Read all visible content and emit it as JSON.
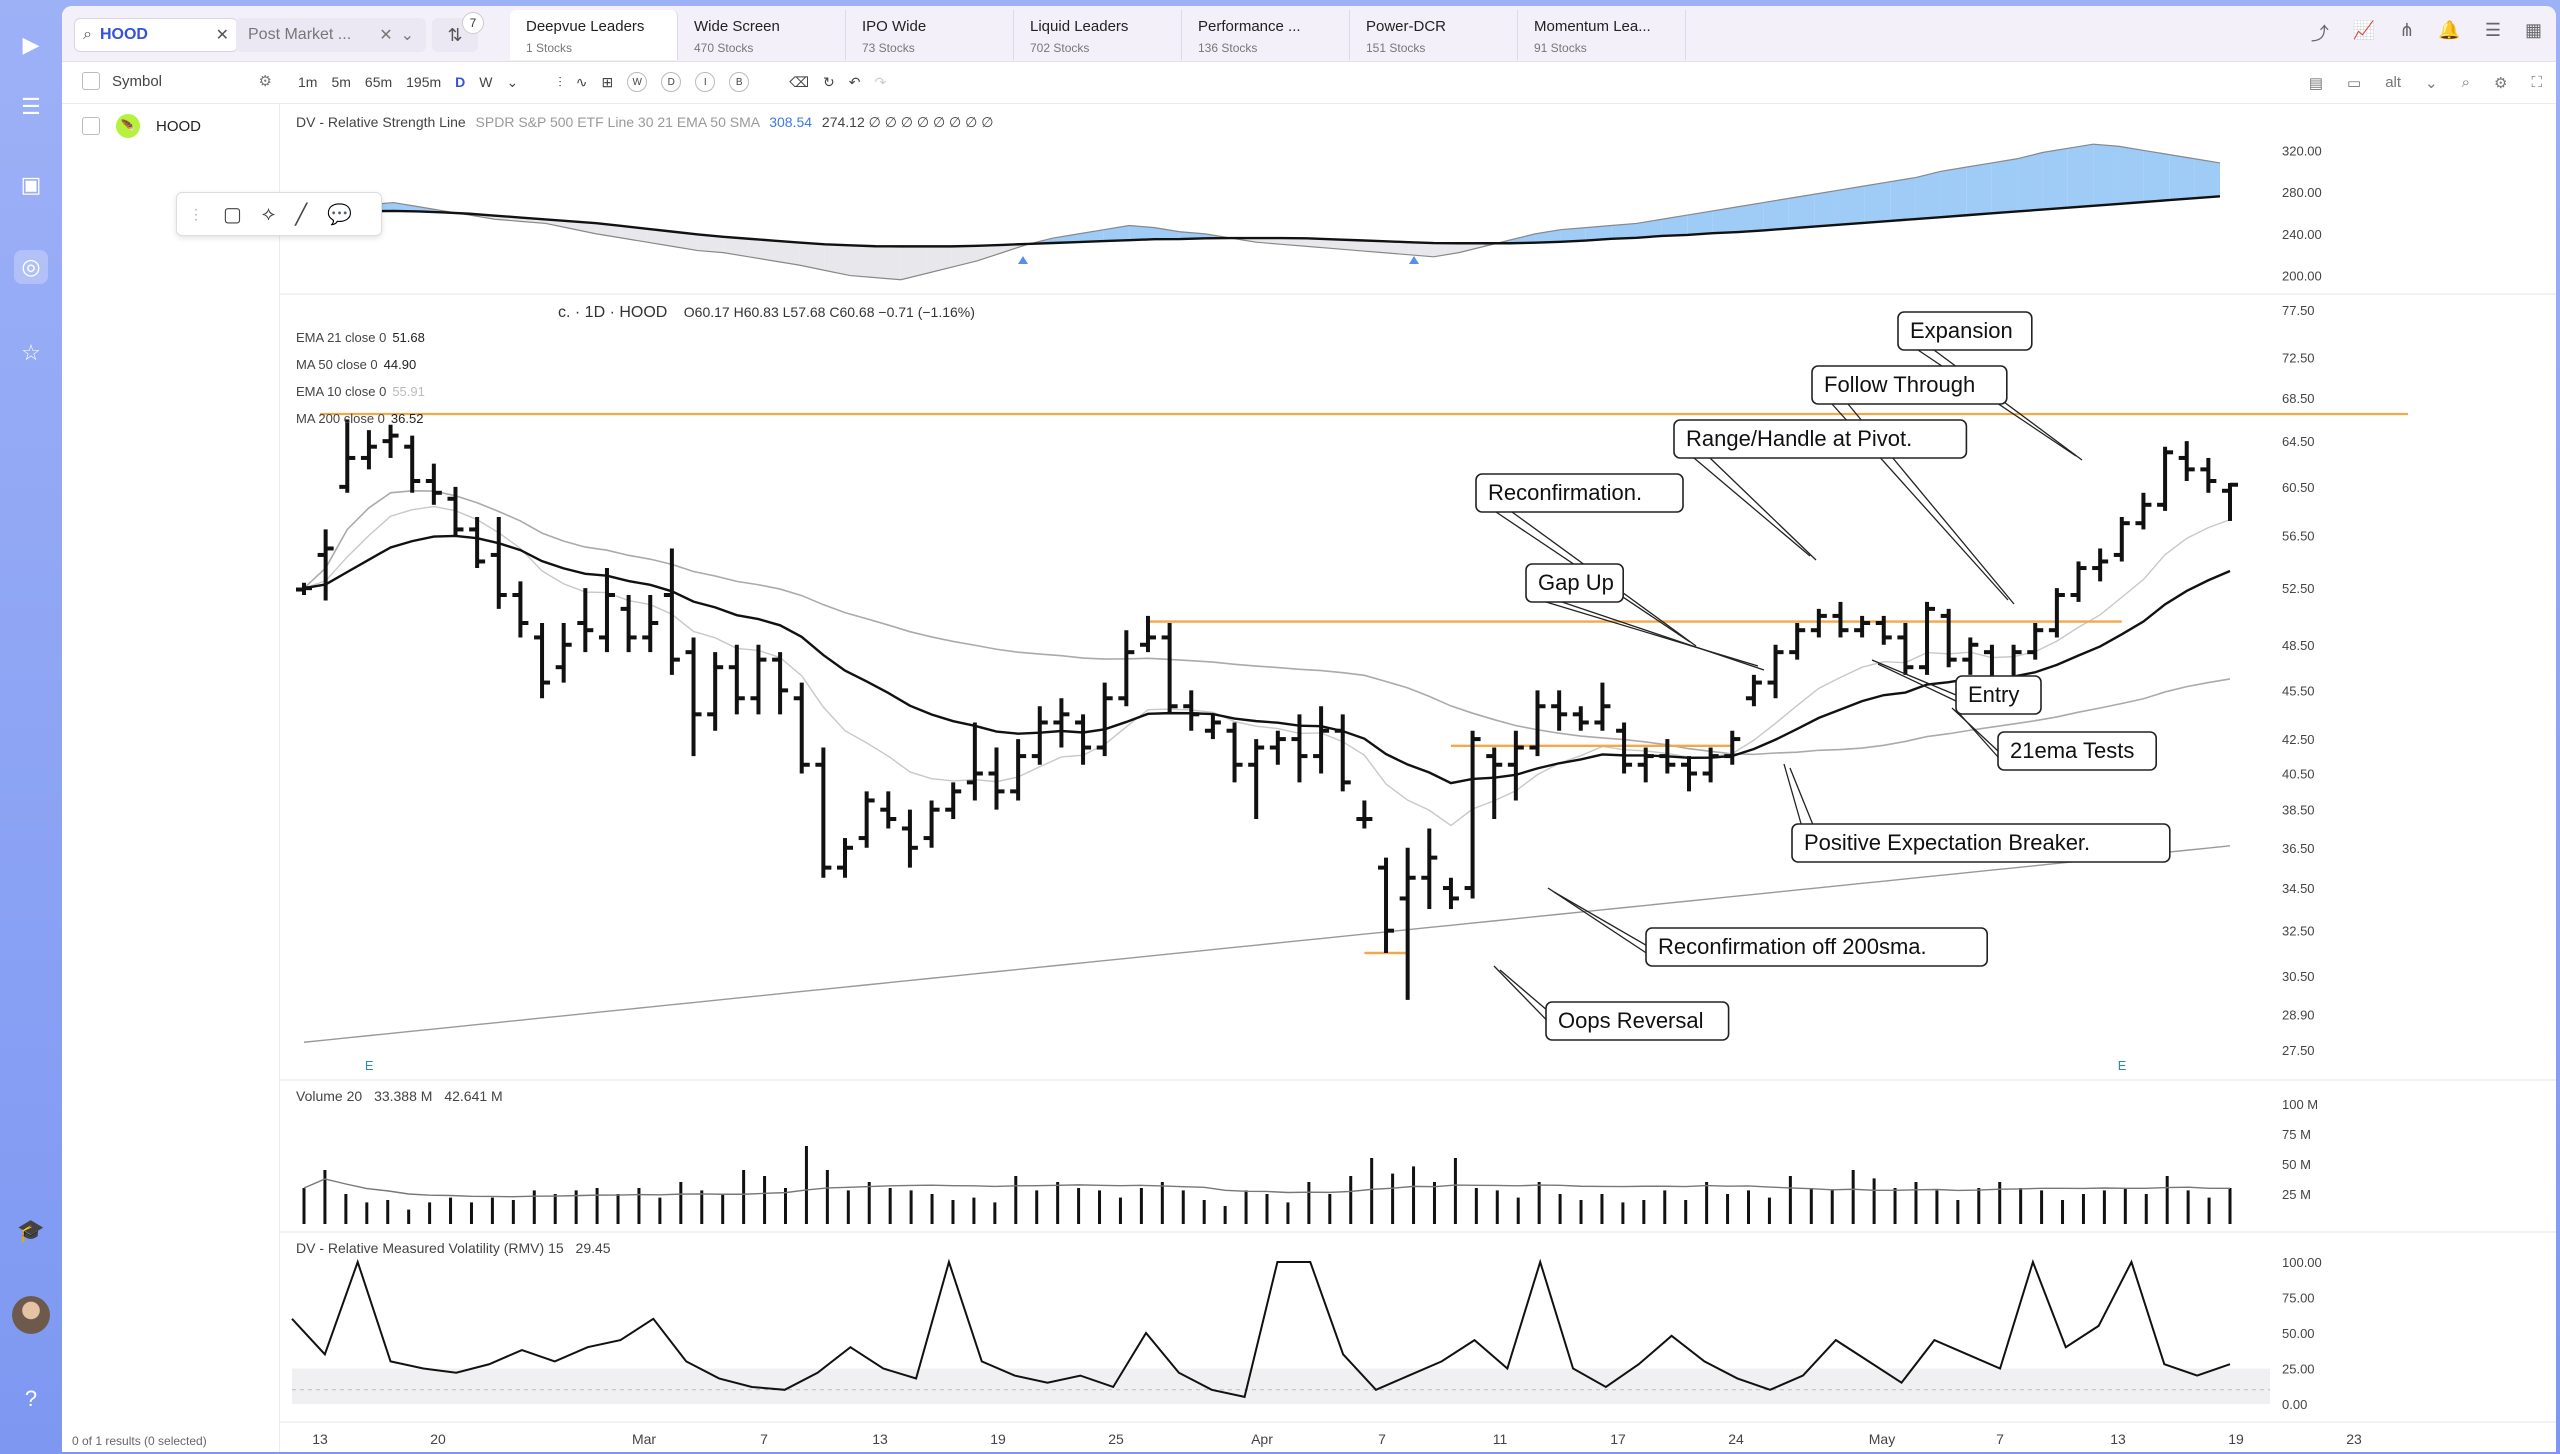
{
  "search": {
    "value": "HOOD"
  },
  "market_dropdown": {
    "label": "Post Market ..."
  },
  "filter": {
    "badge": "7"
  },
  "tabs": [
    {
      "name": "Deepvue Leaders",
      "count": "1 Stocks",
      "active": true
    },
    {
      "name": "Wide Screen",
      "count": "470 Stocks"
    },
    {
      "name": "IPO Wide",
      "count": "73 Stocks"
    },
    {
      "name": "Liquid Leaders",
      "count": "702 Stocks"
    },
    {
      "name": "Performance ...",
      "count": "136 Stocks"
    },
    {
      "name": "Power-DCR",
      "count": "151 Stocks"
    },
    {
      "name": "Momentum Lea...",
      "count": "91 Stocks"
    }
  ],
  "symbol_list": {
    "header": "Symbol",
    "items": [
      {
        "symbol": "HOOD"
      }
    ],
    "results": "0 of 1 results (0 selected)"
  },
  "timeframes": [
    "1m",
    "5m",
    "65m",
    "195m",
    "D",
    "W"
  ],
  "timeframe_active": "D",
  "toolbar_circles": [
    "W",
    "D",
    "I",
    "B"
  ],
  "alt_label": "alt",
  "rs_panel": {
    "title": "DV - Relative Strength Line",
    "params": "SPDR S&P 500 ETF Line 30 21 EMA 50 SMA",
    "v1": "308.54",
    "v2": "274.12 ∅ ∅ ∅ ∅ ∅ ∅ ∅ ∅",
    "ticks": [
      "320.00",
      "280.00",
      "240.00",
      "200.00"
    ]
  },
  "price_panel": {
    "header": "c. · 1D · HOOD",
    "ohlc": "O60.17  H60.83  L57.68  C60.68  −0.71 (−1.16%)",
    "indicators": [
      {
        "name": "EMA 21 close 0",
        "value": "51.68"
      },
      {
        "name": "MA 50 close 0",
        "value": "44.90"
      },
      {
        "name": "EMA 10 close 0",
        "value": "55.91"
      },
      {
        "name": "MA 200 close 0",
        "value": "36.52"
      }
    ],
    "ticks": [
      "77.50",
      "72.50",
      "68.50",
      "64.50",
      "60.50",
      "56.50",
      "52.50",
      "48.50",
      "45.50",
      "42.50",
      "40.50",
      "38.50",
      "36.50",
      "34.50",
      "32.50",
      "30.50",
      "28.90",
      "27.50"
    ],
    "earnings_marker": "E"
  },
  "annotations": [
    "Expansion",
    "Follow Through",
    "Range/Handle at Pivot.",
    "Reconfirmation.",
    "Gap Up",
    "Entry",
    "21ema Tests",
    "Positive Expectation Breaker.",
    "Reconfirmation off 200sma.",
    "Oops Reversal"
  ],
  "volume_panel": {
    "title": "Volume 20",
    "v1": "33.388 M",
    "v2": "42.641 M",
    "ticks": [
      "100 M",
      "75 M",
      "50 M",
      "25 M"
    ]
  },
  "rmv_panel": {
    "title": "DV - Relative Measured Volatility (RMV) 15",
    "value": "29.45",
    "ticks": [
      "100.00",
      "75.00",
      "50.00",
      "25.00",
      "0.00"
    ]
  },
  "x_axis": [
    "13",
    "20",
    "Mar",
    "7",
    "13",
    "19",
    "25",
    "Apr",
    "7",
    "11",
    "17",
    "24",
    "May",
    "7",
    "13",
    "19",
    "23"
  ],
  "chart_data": {
    "type": "candlestick",
    "interval": "1D",
    "symbol": "HOOD",
    "y_scale": "log",
    "price_range": [
      27.5,
      77.5
    ],
    "bars": [
      {
        "o": 52.4,
        "h": 52.9,
        "l": 52.0,
        "c": 52.5
      },
      {
        "o": 55.0,
        "h": 57.0,
        "l": 51.6,
        "c": 55.5
      },
      {
        "o": 60.5,
        "h": 66.5,
        "l": 60.0,
        "c": 63.0
      },
      {
        "o": 63.0,
        "h": 65.5,
        "l": 62.0,
        "c": 64.0
      },
      {
        "o": 64.5,
        "h": 66.0,
        "l": 63.0,
        "c": 65.0
      },
      {
        "o": 64.0,
        "h": 65.0,
        "l": 60.0,
        "c": 61.0
      },
      {
        "o": 61.0,
        "h": 62.5,
        "l": 59.0,
        "c": 60.0
      },
      {
        "o": 59.5,
        "h": 60.5,
        "l": 56.5,
        "c": 57.0
      },
      {
        "o": 57.0,
        "h": 58.0,
        "l": 54.0,
        "c": 54.5
      },
      {
        "o": 55.0,
        "h": 58.0,
        "l": 51.0,
        "c": 52.0
      },
      {
        "o": 52.0,
        "h": 53.0,
        "l": 49.0,
        "c": 50.0
      },
      {
        "o": 49.0,
        "h": 50.0,
        "l": 45.0,
        "c": 46.0
      },
      {
        "o": 47.0,
        "h": 50.0,
        "l": 46.0,
        "c": 48.5
      },
      {
        "o": 50.0,
        "h": 52.5,
        "l": 48.0,
        "c": 49.5
      },
      {
        "o": 49.0,
        "h": 54.0,
        "l": 48.0,
        "c": 52.0
      },
      {
        "o": 51.0,
        "h": 52.0,
        "l": 48.0,
        "c": 49.0
      },
      {
        "o": 49.0,
        "h": 52.0,
        "l": 48.0,
        "c": 50.0
      },
      {
        "o": 52.0,
        "h": 55.5,
        "l": 46.5,
        "c": 47.5
      },
      {
        "o": 48.0,
        "h": 49.0,
        "l": 41.5,
        "c": 44.0
      },
      {
        "o": 44.0,
        "h": 48.0,
        "l": 43.0,
        "c": 47.0
      },
      {
        "o": 47.0,
        "h": 48.5,
        "l": 44.0,
        "c": 45.0
      },
      {
        "o": 45.0,
        "h": 48.5,
        "l": 44.0,
        "c": 47.5
      },
      {
        "o": 47.5,
        "h": 48.0,
        "l": 44.0,
        "c": 45.5
      },
      {
        "o": 45.0,
        "h": 46.0,
        "l": 40.5,
        "c": 41.0
      },
      {
        "o": 41.0,
        "h": 42.0,
        "l": 35.0,
        "c": 35.5
      },
      {
        "o": 35.5,
        "h": 37.0,
        "l": 35.0,
        "c": 36.5
      },
      {
        "o": 37.0,
        "h": 39.5,
        "l": 36.5,
        "c": 39.0
      },
      {
        "o": 38.5,
        "h": 39.5,
        "l": 37.5,
        "c": 38.0
      },
      {
        "o": 37.5,
        "h": 38.5,
        "l": 35.5,
        "c": 36.5
      },
      {
        "o": 37.0,
        "h": 39.0,
        "l": 36.5,
        "c": 38.5
      },
      {
        "o": 38.5,
        "h": 40.0,
        "l": 38.0,
        "c": 39.5
      },
      {
        "o": 40.0,
        "h": 43.5,
        "l": 39.0,
        "c": 40.5
      },
      {
        "o": 40.5,
        "h": 42.0,
        "l": 38.5,
        "c": 39.5
      },
      {
        "o": 39.5,
        "h": 42.5,
        "l": 39.0,
        "c": 41.5
      },
      {
        "o": 41.5,
        "h": 44.5,
        "l": 41.0,
        "c": 43.5
      },
      {
        "o": 43.5,
        "h": 45.0,
        "l": 42.0,
        "c": 44.0
      },
      {
        "o": 43.5,
        "h": 44.0,
        "l": 41.0,
        "c": 42.0
      },
      {
        "o": 42.0,
        "h": 46.0,
        "l": 41.5,
        "c": 45.0
      },
      {
        "o": 45.0,
        "h": 49.5,
        "l": 44.5,
        "c": 48.0
      },
      {
        "o": 48.5,
        "h": 50.5,
        "l": 48.0,
        "c": 49.0
      },
      {
        "o": 49.0,
        "h": 50.0,
        "l": 44.0,
        "c": 44.5
      },
      {
        "o": 44.5,
        "h": 45.5,
        "l": 43.0,
        "c": 44.0
      },
      {
        "o": 43.0,
        "h": 44.0,
        "l": 42.5,
        "c": 43.5
      },
      {
        "o": 43.0,
        "h": 43.5,
        "l": 40.0,
        "c": 41.0
      },
      {
        "o": 41.0,
        "h": 42.5,
        "l": 38.0,
        "c": 42.0
      },
      {
        "o": 42.0,
        "h": 43.0,
        "l": 41.0,
        "c": 42.5
      },
      {
        "o": 42.5,
        "h": 44.0,
        "l": 40.0,
        "c": 41.5
      },
      {
        "o": 41.5,
        "h": 44.5,
        "l": 40.5,
        "c": 43.0
      },
      {
        "o": 43.0,
        "h": 44.0,
        "l": 39.5,
        "c": 40.0
      },
      {
        "o": 38.0,
        "h": 39.0,
        "l": 37.5,
        "c": 38.0
      },
      {
        "o": 35.5,
        "h": 36.0,
        "l": 31.5,
        "c": 32.5
      },
      {
        "o": 34.0,
        "h": 36.5,
        "l": 29.5,
        "c": 35.0
      },
      {
        "o": 35.0,
        "h": 37.5,
        "l": 33.5,
        "c": 36.0
      },
      {
        "o": 34.5,
        "h": 35.0,
        "l": 33.5,
        "c": 34.0
      },
      {
        "o": 34.5,
        "h": 43.0,
        "l": 34.0,
        "c": 42.5
      },
      {
        "o": 41.5,
        "h": 42.0,
        "l": 38.0,
        "c": 41.0
      },
      {
        "o": 41.0,
        "h": 43.0,
        "l": 39.0,
        "c": 42.0
      },
      {
        "o": 42.0,
        "h": 45.5,
        "l": 41.5,
        "c": 44.5
      },
      {
        "o": 44.5,
        "h": 45.5,
        "l": 43.0,
        "c": 44.0
      },
      {
        "o": 44.0,
        "h": 44.5,
        "l": 43.0,
        "c": 43.5
      },
      {
        "o": 43.5,
        "h": 46.0,
        "l": 43.0,
        "c": 44.5
      },
      {
        "o": 43.0,
        "h": 43.5,
        "l": 40.5,
        "c": 41.0
      },
      {
        "o": 41.0,
        "h": 42.0,
        "l": 40.0,
        "c": 41.5
      },
      {
        "o": 41.5,
        "h": 42.5,
        "l": 40.5,
        "c": 41.0
      },
      {
        "o": 41.0,
        "h": 41.5,
        "l": 39.5,
        "c": 40.5
      },
      {
        "o": 40.5,
        "h": 42.0,
        "l": 40.0,
        "c": 41.5
      },
      {
        "o": 41.5,
        "h": 43.0,
        "l": 41.0,
        "c": 42.5
      },
      {
        "o": 45.0,
        "h": 46.5,
        "l": 44.5,
        "c": 46.0
      },
      {
        "o": 46.0,
        "h": 48.5,
        "l": 45.0,
        "c": 48.0
      },
      {
        "o": 48.0,
        "h": 50.0,
        "l": 47.5,
        "c": 49.5
      },
      {
        "o": 49.5,
        "h": 51.0,
        "l": 49.0,
        "c": 50.5
      },
      {
        "o": 50.5,
        "h": 51.5,
        "l": 49.0,
        "c": 49.5
      },
      {
        "o": 49.5,
        "h": 50.5,
        "l": 49.0,
        "c": 50.0
      },
      {
        "o": 50.0,
        "h": 50.5,
        "l": 48.5,
        "c": 49.0
      },
      {
        "o": 49.0,
        "h": 50.0,
        "l": 46.5,
        "c": 47.0
      },
      {
        "o": 47.0,
        "h": 51.5,
        "l": 46.5,
        "c": 51.0
      },
      {
        "o": 50.5,
        "h": 51.0,
        "l": 47.0,
        "c": 47.5
      },
      {
        "o": 47.5,
        "h": 49.0,
        "l": 46.5,
        "c": 48.5
      },
      {
        "o": 48.0,
        "h": 48.5,
        "l": 45.5,
        "c": 46.0
      },
      {
        "o": 46.0,
        "h": 48.5,
        "l": 45.5,
        "c": 48.0
      },
      {
        "o": 48.0,
        "h": 50.0,
        "l": 47.5,
        "c": 49.5
      },
      {
        "o": 49.5,
        "h": 52.5,
        "l": 49.0,
        "c": 52.0
      },
      {
        "o": 52.0,
        "h": 54.5,
        "l": 51.5,
        "c": 54.0
      },
      {
        "o": 54.0,
        "h": 55.5,
        "l": 53.0,
        "c": 54.5
      },
      {
        "o": 55.0,
        "h": 58.0,
        "l": 54.5,
        "c": 57.5
      },
      {
        "o": 57.5,
        "h": 60.0,
        "l": 57.0,
        "c": 59.0
      },
      {
        "o": 59.0,
        "h": 64.0,
        "l": 58.5,
        "c": 63.5
      },
      {
        "o": 63.0,
        "h": 64.5,
        "l": 61.0,
        "c": 62.0
      },
      {
        "o": 62.0,
        "h": 63.0,
        "l": 60.0,
        "c": 61.0
      },
      {
        "o": 60.17,
        "h": 60.83,
        "l": 57.68,
        "c": 60.68
      }
    ],
    "volume_m": [
      30,
      45,
      25,
      18,
      20,
      12,
      18,
      22,
      18,
      22,
      20,
      28,
      25,
      28,
      30,
      25,
      30,
      22,
      35,
      28,
      25,
      45,
      40,
      30,
      65,
      45,
      28,
      35,
      30,
      28,
      25,
      20,
      22,
      18,
      40,
      28,
      35,
      30,
      28,
      22,
      30,
      35,
      28,
      20,
      15,
      28,
      25,
      18,
      35,
      25,
      40,
      55,
      42,
      48,
      35,
      55,
      30,
      28,
      22,
      35,
      25,
      20,
      25,
      18,
      20,
      28,
      20,
      35,
      25,
      28,
      22,
      40,
      30,
      28,
      45,
      38,
      30,
      35,
      28,
      20,
      30,
      35,
      30,
      28,
      20,
      25,
      28,
      30,
      25,
      40,
      28,
      22,
      30
    ],
    "rs_line": [
      258,
      262,
      265,
      268,
      270,
      266,
      262,
      258,
      254,
      252,
      250,
      245,
      240,
      236,
      232,
      228,
      224,
      222,
      218,
      214,
      210,
      205,
      200,
      198,
      196,
      202,
      208,
      214,
      222,
      230,
      236,
      240,
      244,
      248,
      246,
      242,
      240,
      236,
      232,
      230,
      228,
      226,
      224,
      222,
      220,
      218,
      222,
      228,
      234,
      240,
      244,
      246,
      248,
      250,
      254,
      258,
      262,
      266,
      270,
      274,
      278,
      282,
      286,
      290,
      294,
      300,
      304,
      308,
      312,
      318,
      322,
      326,
      324,
      320,
      316,
      312,
      308
    ],
    "rs_ema": [
      258,
      259,
      261,
      262,
      262,
      261,
      260,
      258,
      256,
      254,
      252,
      250,
      247,
      244,
      241,
      238,
      236,
      234,
      232,
      230,
      229,
      228,
      228,
      228,
      228,
      229,
      230,
      231,
      232,
      233,
      234,
      235,
      235,
      236,
      236,
      236,
      236,
      235,
      234,
      233,
      232,
      231,
      231,
      231,
      231,
      232,
      233,
      235,
      236,
      238,
      239,
      241,
      242,
      244,
      246,
      248,
      250,
      252,
      254,
      256,
      258,
      260,
      262,
      264,
      266,
      268,
      270,
      272,
      274,
      276
    ],
    "rmv": [
      60,
      35,
      100,
      30,
      25,
      22,
      28,
      38,
      30,
      40,
      45,
      60,
      30,
      18,
      12,
      10,
      22,
      40,
      25,
      18,
      100,
      30,
      20,
      15,
      20,
      12,
      50,
      22,
      10,
      5,
      100,
      100,
      35,
      10,
      20,
      30,
      45,
      25,
      100,
      25,
      12,
      28,
      48,
      30,
      18,
      10,
      20,
      45,
      30,
      15,
      45,
      35,
      25,
      100,
      40,
      55,
      100,
      28,
      20,
      28
    ]
  }
}
